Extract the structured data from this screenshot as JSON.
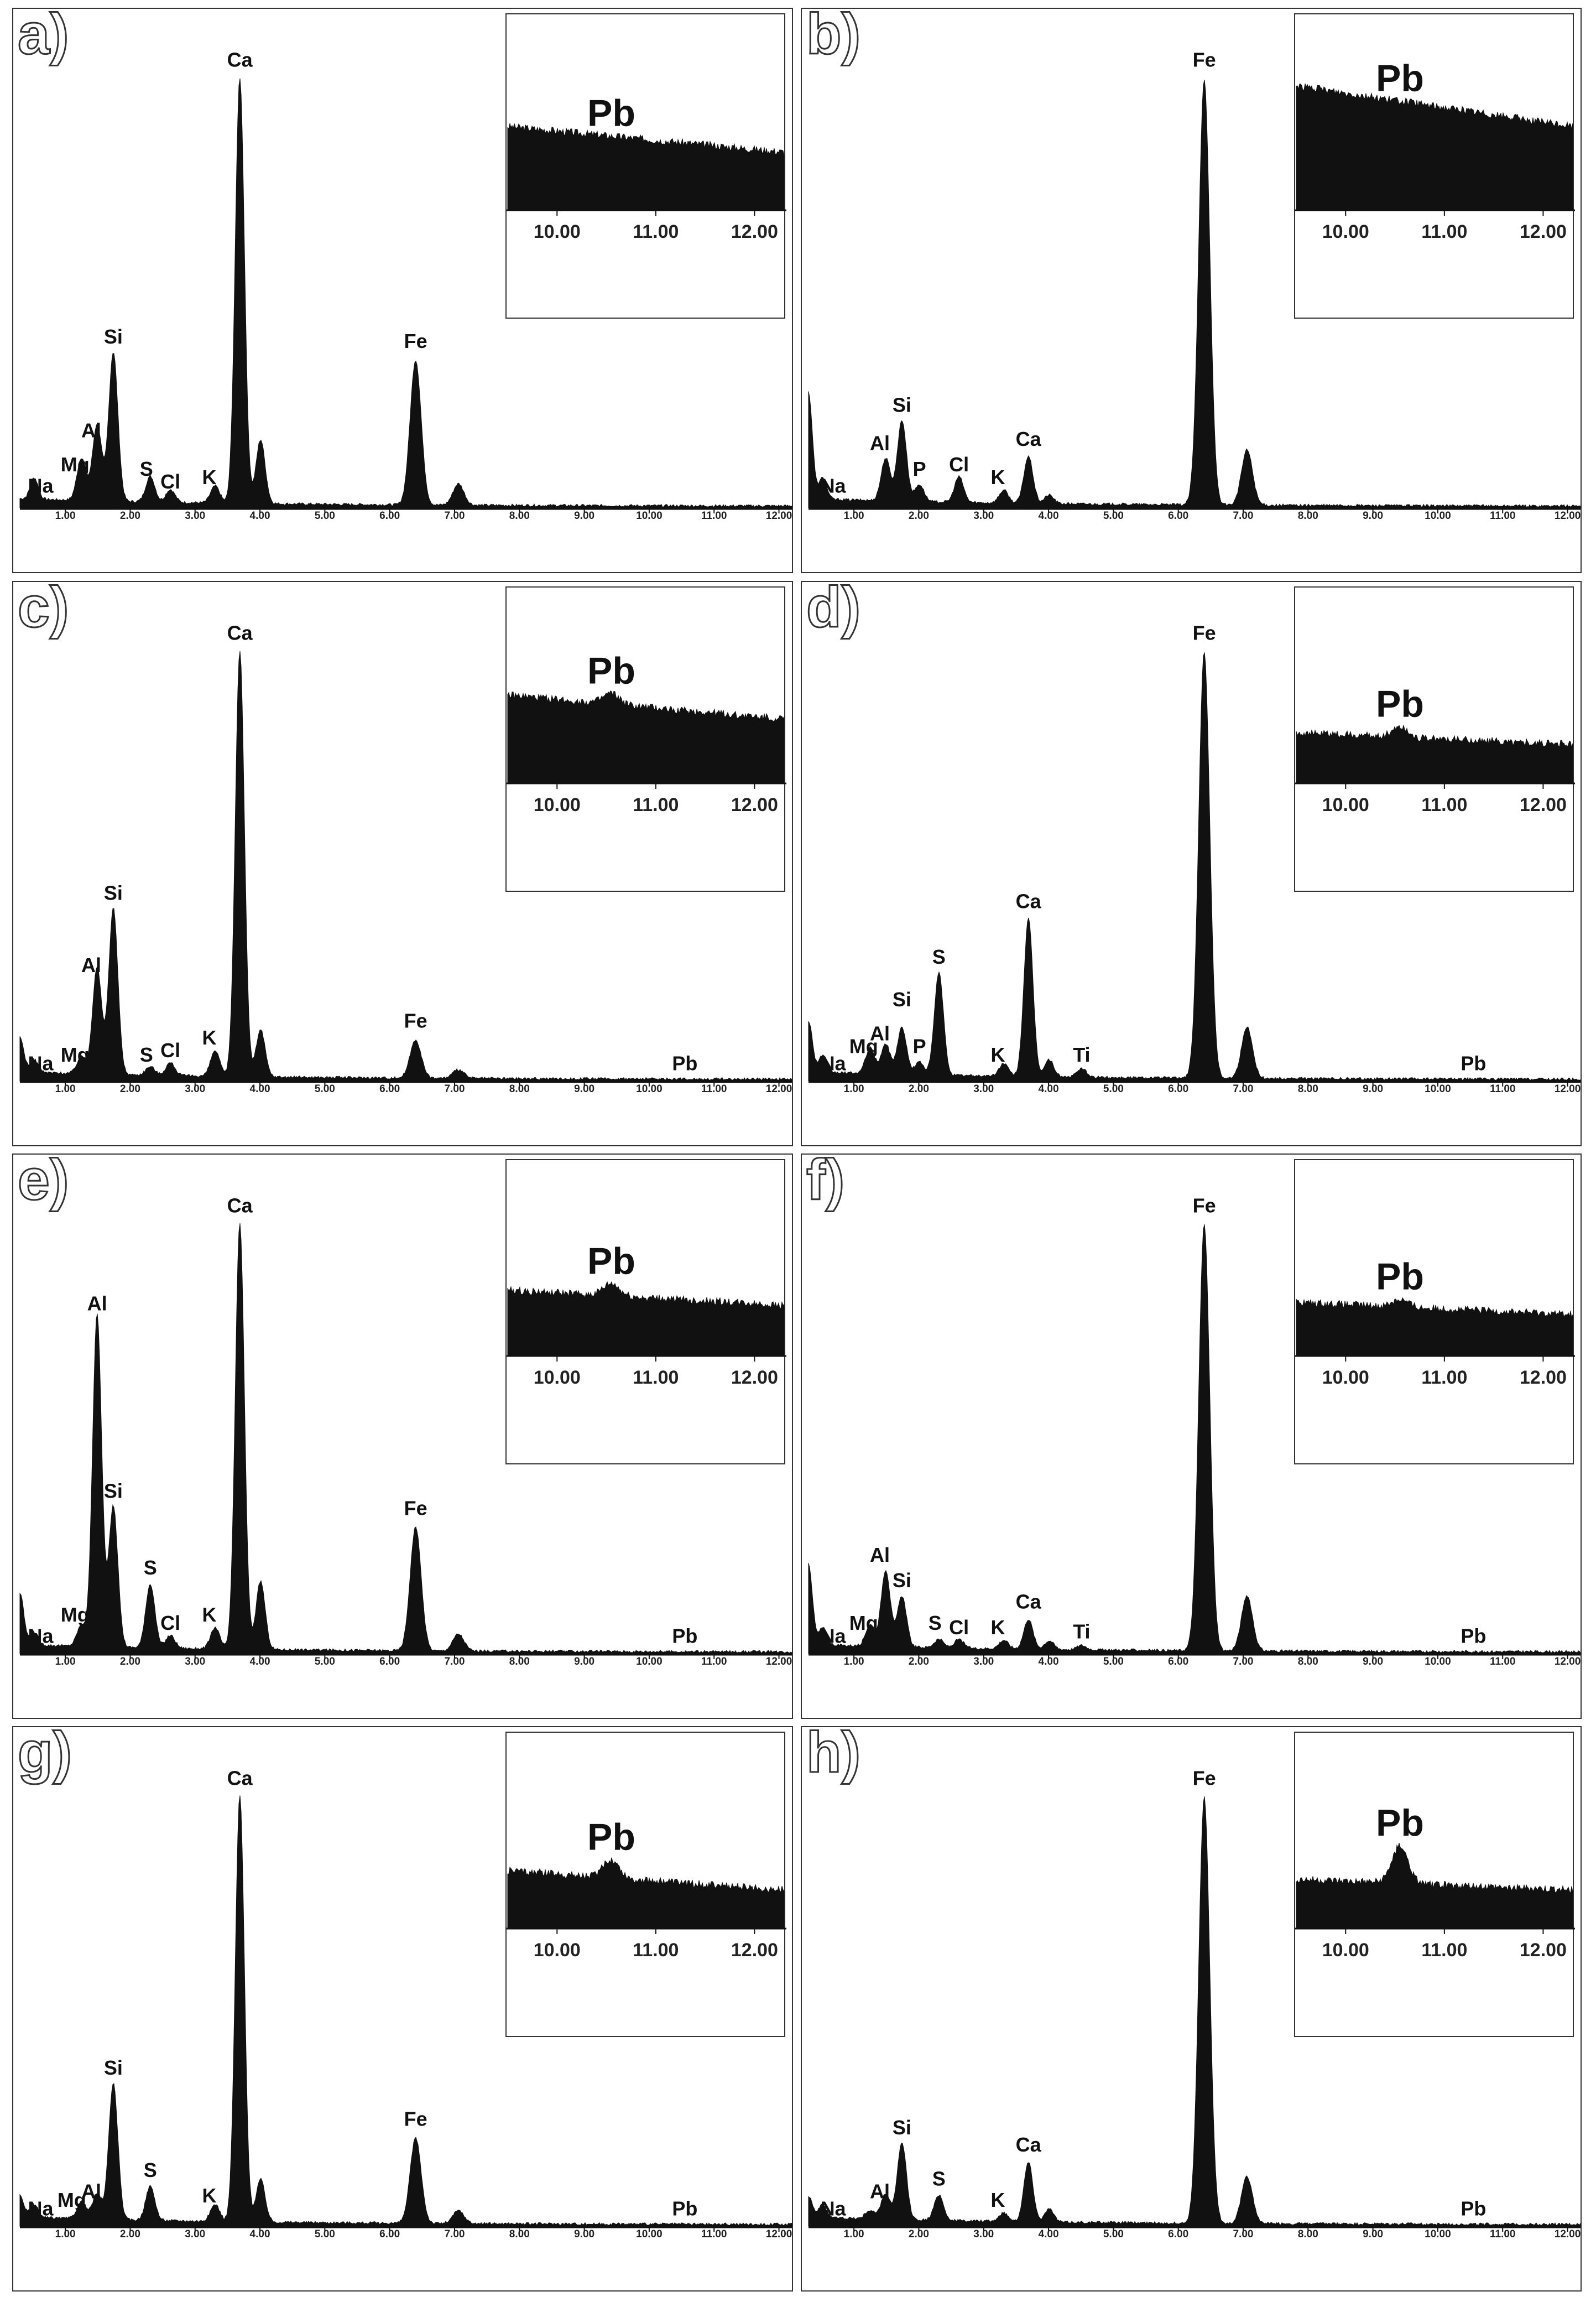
{
  "chart_data": [
    {
      "type": "area",
      "panel_label": "a)",
      "xlim": [
        0.3,
        12.2
      ],
      "xticks": [
        "1.00",
        "2.00",
        "3.00",
        "4.00",
        "5.00",
        "6.00",
        "7.00",
        "8.00",
        "9.00",
        "10.00",
        "11.00",
        "12.00"
      ],
      "peaks": [
        {
          "el": "Na",
          "x": 0.52,
          "h": 0.05
        },
        {
          "el": "Mg",
          "x": 1.25,
          "h": 0.1
        },
        {
          "el": "Al",
          "x": 1.49,
          "h": 0.18
        },
        {
          "el": "Si",
          "x": 1.74,
          "h": 0.35
        },
        {
          "el": "S",
          "x": 2.31,
          "h": 0.06
        },
        {
          "el": "Cl",
          "x": 2.62,
          "h": 0.03
        },
        {
          "el": "K",
          "x": 3.31,
          "h": 0.04
        },
        {
          "el": "Ca",
          "x": 3.69,
          "h": 1.0
        },
        {
          "el": "",
          "x": 4.01,
          "h": 0.15
        },
        {
          "el": "Fe",
          "x": 6.4,
          "h": 0.34
        },
        {
          "el": "",
          "x": 7.06,
          "h": 0.05
        }
      ],
      "labels": [
        {
          "text": "Na",
          "x": 0.62,
          "h": 0.02
        },
        {
          "text": "Mg",
          "x": 1.15,
          "h": 0.07
        },
        {
          "text": "Al",
          "x": 1.4,
          "h": 0.15
        },
        {
          "text": "Si",
          "x": 1.74,
          "h": 0.37
        },
        {
          "text": "S",
          "x": 2.25,
          "h": 0.06
        },
        {
          "text": "Cl",
          "x": 2.62,
          "h": 0.03
        },
        {
          "text": "K",
          "x": 3.22,
          "h": 0.04
        },
        {
          "text": "Ca",
          "x": 3.69,
          "h": 1.02
        },
        {
          "text": "Fe",
          "x": 6.4,
          "h": 0.36
        }
      ],
      "inset": {
        "label": "Pb",
        "xticks": [
          "10.00",
          "11.00",
          "12.00"
        ],
        "level_start": 0.55,
        "level_end": 0.38,
        "pb_peak": 0.0
      }
    },
    {
      "type": "area",
      "panel_label": "b)",
      "xlim": [
        0.3,
        12.2
      ],
      "xticks": [
        "1.00",
        "2.00",
        "3.00",
        "4.00",
        "5.00",
        "6.00",
        "7.00",
        "8.00",
        "9.00",
        "10.00",
        "11.00",
        "12.00"
      ],
      "peaks": [
        {
          "el": "",
          "x": 0.3,
          "h": 0.25
        },
        {
          "el": "Na",
          "x": 0.52,
          "h": 0.05
        },
        {
          "el": "Al",
          "x": 1.49,
          "h": 0.1
        },
        {
          "el": "Si",
          "x": 1.74,
          "h": 0.19
        },
        {
          "el": "P",
          "x": 2.01,
          "h": 0.04
        },
        {
          "el": "Cl",
          "x": 2.62,
          "h": 0.06
        },
        {
          "el": "K",
          "x": 3.31,
          "h": 0.03
        },
        {
          "el": "Ca",
          "x": 3.69,
          "h": 0.11
        },
        {
          "el": "",
          "x": 4.01,
          "h": 0.02
        },
        {
          "el": "Fe",
          "x": 6.4,
          "h": 1.0
        },
        {
          "el": "",
          "x": 7.06,
          "h": 0.13
        }
      ],
      "labels": [
        {
          "text": "Na",
          "x": 0.68,
          "h": 0.02
        },
        {
          "text": "Al",
          "x": 1.4,
          "h": 0.12
        },
        {
          "text": "Si",
          "x": 1.74,
          "h": 0.21
        },
        {
          "text": "P",
          "x": 2.01,
          "h": 0.06
        },
        {
          "text": "Cl",
          "x": 2.62,
          "h": 0.07
        },
        {
          "text": "K",
          "x": 3.22,
          "h": 0.04
        },
        {
          "text": "Ca",
          "x": 3.69,
          "h": 0.13
        },
        {
          "text": "Fe",
          "x": 6.4,
          "h": 1.02
        }
      ],
      "inset": {
        "label": "Pb",
        "xticks": [
          "10.00",
          "11.00",
          "12.00"
        ],
        "level_start": 0.82,
        "level_end": 0.55,
        "pb_peak": 0.0
      }
    },
    {
      "type": "area",
      "panel_label": "c)",
      "xlim": [
        0.3,
        12.2
      ],
      "xticks": [
        "1.00",
        "2.00",
        "3.00",
        "4.00",
        "5.00",
        "6.00",
        "7.00",
        "8.00",
        "9.00",
        "10.00",
        "11.00",
        "12.00"
      ],
      "peaks": [
        {
          "el": "",
          "x": 0.3,
          "h": 0.08
        },
        {
          "el": "Na",
          "x": 0.52,
          "h": 0.03
        },
        {
          "el": "Mg",
          "x": 1.25,
          "h": 0.04
        },
        {
          "el": "Al",
          "x": 1.49,
          "h": 0.25
        },
        {
          "el": "Si",
          "x": 1.74,
          "h": 0.39
        },
        {
          "el": "S",
          "x": 2.31,
          "h": 0.02
        },
        {
          "el": "Cl",
          "x": 2.62,
          "h": 0.03
        },
        {
          "el": "K",
          "x": 3.31,
          "h": 0.06
        },
        {
          "el": "Ca",
          "x": 3.69,
          "h": 1.0
        },
        {
          "el": "",
          "x": 4.01,
          "h": 0.11
        },
        {
          "el": "Fe",
          "x": 6.4,
          "h": 0.09
        },
        {
          "el": "",
          "x": 7.06,
          "h": 0.02
        }
      ],
      "labels": [
        {
          "text": "Na",
          "x": 0.62,
          "h": 0.01
        },
        {
          "text": "Mg",
          "x": 1.15,
          "h": 0.03
        },
        {
          "text": "Al",
          "x": 1.4,
          "h": 0.24
        },
        {
          "text": "Si",
          "x": 1.74,
          "h": 0.41
        },
        {
          "text": "S",
          "x": 2.25,
          "h": 0.03
        },
        {
          "text": "Cl",
          "x": 2.62,
          "h": 0.04
        },
        {
          "text": "K",
          "x": 3.22,
          "h": 0.07
        },
        {
          "text": "Ca",
          "x": 3.69,
          "h": 1.02
        },
        {
          "text": "Fe",
          "x": 6.4,
          "h": 0.11
        },
        {
          "text": "Pb",
          "x": 10.55,
          "h": 0.01
        }
      ],
      "inset": {
        "label": "Pb",
        "xticks": [
          "10.00",
          "11.00",
          "12.00"
        ],
        "level_start": 0.58,
        "level_end": 0.42,
        "pb_peak": 0.07
      }
    },
    {
      "type": "area",
      "panel_label": "d)",
      "xlim": [
        0.3,
        12.2
      ],
      "xticks": [
        "1.00",
        "2.00",
        "3.00",
        "4.00",
        "5.00",
        "6.00",
        "7.00",
        "8.00",
        "9.00",
        "10.00",
        "11.00",
        "12.00"
      ],
      "peaks": [
        {
          "el": "",
          "x": 0.3,
          "h": 0.12
        },
        {
          "el": "Na",
          "x": 0.52,
          "h": 0.04
        },
        {
          "el": "Mg",
          "x": 1.25,
          "h": 0.06
        },
        {
          "el": "Al",
          "x": 1.49,
          "h": 0.07
        },
        {
          "el": "Si",
          "x": 1.74,
          "h": 0.11
        },
        {
          "el": "P",
          "x": 2.01,
          "h": 0.03
        },
        {
          "el": "S",
          "x": 2.31,
          "h": 0.24
        },
        {
          "el": "K",
          "x": 3.31,
          "h": 0.03
        },
        {
          "el": "Ca",
          "x": 3.69,
          "h": 0.37
        },
        {
          "el": "",
          "x": 4.01,
          "h": 0.04
        },
        {
          "el": "Ti",
          "x": 4.51,
          "h": 0.02
        },
        {
          "el": "Fe",
          "x": 6.4,
          "h": 1.0
        },
        {
          "el": "",
          "x": 7.06,
          "h": 0.12
        }
      ],
      "labels": [
        {
          "text": "Na",
          "x": 0.68,
          "h": 0.01
        },
        {
          "text": "Mg",
          "x": 1.15,
          "h": 0.05
        },
        {
          "text": "Al",
          "x": 1.4,
          "h": 0.08
        },
        {
          "text": "Si",
          "x": 1.74,
          "h": 0.16
        },
        {
          "text": "P",
          "x": 2.01,
          "h": 0.05
        },
        {
          "text": "S",
          "x": 2.31,
          "h": 0.26
        },
        {
          "text": "K",
          "x": 3.22,
          "h": 0.03
        },
        {
          "text": "Ca",
          "x": 3.69,
          "h": 0.39
        },
        {
          "text": "Ti",
          "x": 4.51,
          "h": 0.03
        },
        {
          "text": "Pb",
          "x": 10.55,
          "h": 0.01
        },
        {
          "text": "Fe",
          "x": 6.4,
          "h": 1.02
        }
      ],
      "inset": {
        "label": "Pb",
        "xticks": [
          "10.00",
          "11.00",
          "12.00"
        ],
        "level_start": 0.33,
        "level_end": 0.25,
        "pb_peak": 0.07
      }
    },
    {
      "type": "area",
      "panel_label": "e)",
      "xlim": [
        0.3,
        12.2
      ],
      "xticks": [
        "1.00",
        "2.00",
        "3.00",
        "4.00",
        "5.00",
        "6.00",
        "7.00",
        "8.00",
        "9.00",
        "10.00",
        "11.00",
        "12.00"
      ],
      "peaks": [
        {
          "el": "",
          "x": 0.3,
          "h": 0.12
        },
        {
          "el": "Na",
          "x": 0.52,
          "h": 0.03
        },
        {
          "el": "Mg",
          "x": 1.25,
          "h": 0.05
        },
        {
          "el": "Al",
          "x": 1.49,
          "h": 0.78
        },
        {
          "el": "Si",
          "x": 1.74,
          "h": 0.33
        },
        {
          "el": "S",
          "x": 2.31,
          "h": 0.15
        },
        {
          "el": "Cl",
          "x": 2.62,
          "h": 0.03
        },
        {
          "el": "K",
          "x": 3.31,
          "h": 0.05
        },
        {
          "el": "Ca",
          "x": 3.69,
          "h": 1.0
        },
        {
          "el": "",
          "x": 4.01,
          "h": 0.16
        },
        {
          "el": "Fe",
          "x": 6.4,
          "h": 0.29
        },
        {
          "el": "",
          "x": 7.06,
          "h": 0.04
        }
      ],
      "labels": [
        {
          "text": "Na",
          "x": 0.62,
          "h": 0.01
        },
        {
          "text": "Mg",
          "x": 1.15,
          "h": 0.06
        },
        {
          "text": "Al",
          "x": 1.49,
          "h": 0.79
        },
        {
          "text": "Si",
          "x": 1.74,
          "h": 0.35
        },
        {
          "text": "S",
          "x": 2.31,
          "h": 0.17
        },
        {
          "text": "Cl",
          "x": 2.62,
          "h": 0.04
        },
        {
          "text": "K",
          "x": 3.22,
          "h": 0.06
        },
        {
          "text": "Ca",
          "x": 3.69,
          "h": 1.02
        },
        {
          "text": "Fe",
          "x": 6.4,
          "h": 0.31
        },
        {
          "text": "Pb",
          "x": 10.55,
          "h": 0.01
        }
      ],
      "inset": {
        "label": "Pb",
        "xticks": [
          "10.00",
          "11.00",
          "12.00"
        ],
        "level_start": 0.43,
        "level_end": 0.33,
        "pb_peak": 0.08
      }
    },
    {
      "type": "area",
      "panel_label": "f)",
      "xlim": [
        0.3,
        12.2
      ],
      "xticks": [
        "1.00",
        "2.00",
        "3.00",
        "4.00",
        "5.00",
        "6.00",
        "7.00",
        "8.00",
        "9.00",
        "10.00",
        "11.00",
        "12.00"
      ],
      "peaks": [
        {
          "el": "",
          "x": 0.3,
          "h": 0.19
        },
        {
          "el": "Na",
          "x": 0.52,
          "h": 0.04
        },
        {
          "el": "Mg",
          "x": 1.25,
          "h": 0.05
        },
        {
          "el": "Al",
          "x": 1.49,
          "h": 0.18
        },
        {
          "el": "Si",
          "x": 1.74,
          "h": 0.12
        },
        {
          "el": "S",
          "x": 2.31,
          "h": 0.02
        },
        {
          "el": "Cl",
          "x": 2.62,
          "h": 0.02
        },
        {
          "el": "K",
          "x": 3.31,
          "h": 0.02
        },
        {
          "el": "Ca",
          "x": 3.69,
          "h": 0.07
        },
        {
          "el": "",
          "x": 4.01,
          "h": 0.02
        },
        {
          "el": "Ti",
          "x": 4.51,
          "h": 0.01
        },
        {
          "el": "Fe",
          "x": 6.4,
          "h": 1.0
        },
        {
          "el": "",
          "x": 7.06,
          "h": 0.13
        }
      ],
      "labels": [
        {
          "text": "Na",
          "x": 0.68,
          "h": 0.01
        },
        {
          "text": "Mg",
          "x": 1.15,
          "h": 0.04
        },
        {
          "text": "Al",
          "x": 1.4,
          "h": 0.2
        },
        {
          "text": "Si",
          "x": 1.74,
          "h": 0.14
        },
        {
          "text": "S",
          "x": 2.25,
          "h": 0.04
        },
        {
          "text": "Cl",
          "x": 2.62,
          "h": 0.03
        },
        {
          "text": "K",
          "x": 3.22,
          "h": 0.03
        },
        {
          "text": "Ca",
          "x": 3.69,
          "h": 0.09
        },
        {
          "text": "Ti",
          "x": 4.51,
          "h": 0.02
        },
        {
          "text": "Fe",
          "x": 6.4,
          "h": 1.02
        },
        {
          "text": "Pb",
          "x": 10.55,
          "h": 0.01
        }
      ],
      "inset": {
        "label": "Pb",
        "xticks": [
          "10.00",
          "11.00",
          "12.00"
        ],
        "level_start": 0.35,
        "level_end": 0.27,
        "pb_peak": 0.05
      }
    },
    {
      "type": "area",
      "panel_label": "g)",
      "xlim": [
        0.3,
        12.2
      ],
      "xticks": [
        "1.00",
        "2.00",
        "3.00",
        "4.00",
        "5.00",
        "6.00",
        "7.00",
        "8.00",
        "9.00",
        "10.00",
        "11.00",
        "12.00"
      ],
      "peaks": [
        {
          "el": "",
          "x": 0.3,
          "h": 0.05
        },
        {
          "el": "Na",
          "x": 0.52,
          "h": 0.03
        },
        {
          "el": "Mg",
          "x": 1.25,
          "h": 0.04
        },
        {
          "el": "Al",
          "x": 1.49,
          "h": 0.06
        },
        {
          "el": "Si",
          "x": 1.74,
          "h": 0.32
        },
        {
          "el": "S",
          "x": 2.31,
          "h": 0.08
        },
        {
          "el": "K",
          "x": 3.31,
          "h": 0.04
        },
        {
          "el": "Ca",
          "x": 3.69,
          "h": 1.0
        },
        {
          "el": "",
          "x": 4.01,
          "h": 0.1
        },
        {
          "el": "Fe",
          "x": 6.4,
          "h": 0.2
        },
        {
          "el": "",
          "x": 7.06,
          "h": 0.03
        }
      ],
      "labels": [
        {
          "text": "Na",
          "x": 0.62,
          "h": 0.01
        },
        {
          "text": "Mg",
          "x": 1.1,
          "h": 0.03
        },
        {
          "text": "Al",
          "x": 1.4,
          "h": 0.05
        },
        {
          "text": "Si",
          "x": 1.74,
          "h": 0.34
        },
        {
          "text": "S",
          "x": 2.31,
          "h": 0.1
        },
        {
          "text": "K",
          "x": 3.22,
          "h": 0.04
        },
        {
          "text": "Ca",
          "x": 3.69,
          "h": 1.02
        },
        {
          "text": "Fe",
          "x": 6.4,
          "h": 0.22
        },
        {
          "text": "Pb",
          "x": 10.55,
          "h": 0.01
        }
      ],
      "inset": {
        "label": "Pb",
        "xticks": [
          "10.00",
          "11.00",
          "12.00"
        ],
        "level_start": 0.38,
        "level_end": 0.25,
        "pb_peak": 0.12
      }
    },
    {
      "type": "area",
      "panel_label": "h)",
      "xlim": [
        0.3,
        12.2
      ],
      "xticks": [
        "1.00",
        "2.00",
        "3.00",
        "4.00",
        "5.00",
        "6.00",
        "7.00",
        "8.00",
        "9.00",
        "10.00",
        "11.00",
        "12.00"
      ],
      "peaks": [
        {
          "el": "",
          "x": 0.3,
          "h": 0.05
        },
        {
          "el": "Na",
          "x": 0.52,
          "h": 0.03
        },
        {
          "el": "Mg",
          "x": 1.25,
          "h": 0.02
        },
        {
          "el": "Al",
          "x": 1.49,
          "h": 0.06
        },
        {
          "el": "Si",
          "x": 1.74,
          "h": 0.18
        },
        {
          "el": "S",
          "x": 2.31,
          "h": 0.06
        },
        {
          "el": "K",
          "x": 3.31,
          "h": 0.02
        },
        {
          "el": "Ca",
          "x": 3.69,
          "h": 0.14
        },
        {
          "el": "",
          "x": 4.01,
          "h": 0.03
        },
        {
          "el": "Fe",
          "x": 6.4,
          "h": 1.0
        },
        {
          "el": "",
          "x": 7.06,
          "h": 0.11
        }
      ],
      "labels": [
        {
          "text": "Na",
          "x": 0.68,
          "h": 0.01
        },
        {
          "text": "Al",
          "x": 1.4,
          "h": 0.05
        },
        {
          "text": "Si",
          "x": 1.74,
          "h": 0.2
        },
        {
          "text": "S",
          "x": 2.31,
          "h": 0.08
        },
        {
          "text": "K",
          "x": 3.22,
          "h": 0.03
        },
        {
          "text": "Ca",
          "x": 3.69,
          "h": 0.16
        },
        {
          "text": "Fe",
          "x": 6.4,
          "h": 1.02
        },
        {
          "text": "Pb",
          "x": 10.55,
          "h": 0.01
        }
      ],
      "inset": {
        "label": "Pb",
        "xticks": [
          "10.00",
          "11.00",
          "12.00"
        ],
        "level_start": 0.32,
        "level_end": 0.25,
        "pb_peak": 0.25
      }
    }
  ]
}
